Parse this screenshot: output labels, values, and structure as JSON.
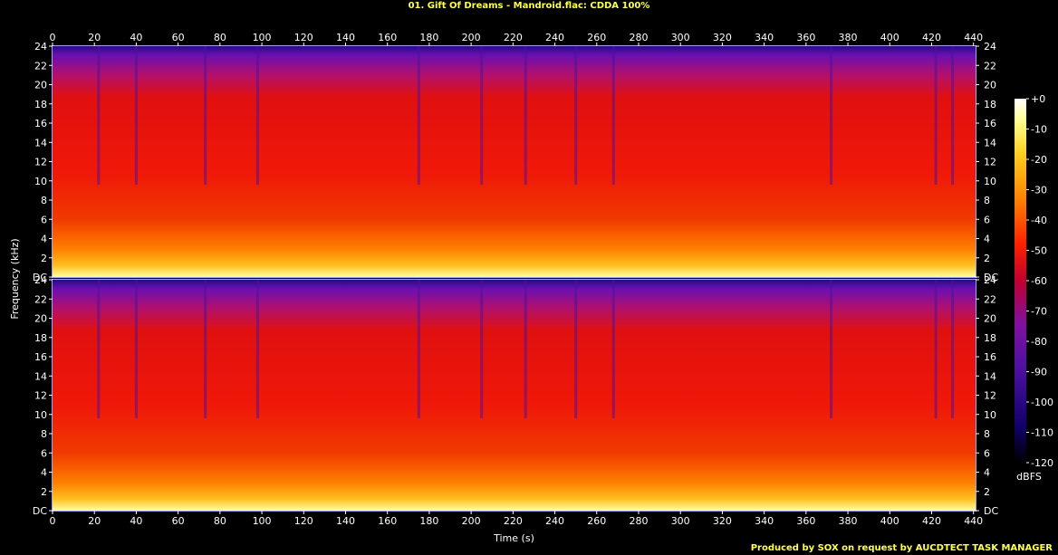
{
  "title": "01. Gift Of Dreams - Mandroid.flac: CDDA 100%",
  "credit": "Produced by SOX on request by AUCDTECT TASK MANAGER",
  "chart_data": {
    "type": "heatmap",
    "title": "01. Gift Of Dreams - Mandroid.flac: CDDA 100%",
    "xlabel": "Time (s)",
    "ylabel": "Frequency (kHz)",
    "xlim": [
      0,
      441
    ],
    "ylim": [
      0,
      24
    ],
    "x_ticks": [
      0,
      20,
      40,
      60,
      80,
      100,
      120,
      140,
      160,
      180,
      200,
      220,
      240,
      260,
      280,
      300,
      320,
      340,
      360,
      380,
      400,
      420,
      440
    ],
    "y_ticks": [
      0,
      2,
      4,
      6,
      8,
      10,
      12,
      14,
      16,
      18,
      20,
      22,
      24
    ],
    "y_tick_labels": [
      "DC",
      "2",
      "4",
      "6",
      "8",
      "10",
      "12",
      "14",
      "16",
      "18",
      "20",
      "22",
      "24"
    ],
    "channels": 2,
    "colorbar": {
      "label": "dBFS",
      "min": -120,
      "max": 0,
      "ticks": [
        0,
        -10,
        -20,
        -30,
        -40,
        -50,
        -60,
        -70,
        -80,
        -90,
        -100,
        -110,
        -120
      ],
      "tick_labels": [
        "+0",
        "-10",
        "-20",
        "-30",
        "-40",
        "-50",
        "-60",
        "-70",
        "-80",
        "-90",
        "-100",
        "-110",
        "-120"
      ],
      "colors": [
        "#000000",
        "#10006a",
        "#4a10a0",
        "#8010a0",
        "#c00020",
        "#ff2000",
        "#ff8000",
        "#ffd020",
        "#ffff80",
        "#ffffff"
      ]
    },
    "quiet_moments_s": [
      22,
      40,
      73,
      98,
      175,
      205,
      226,
      250,
      268,
      372,
      422,
      430
    ],
    "grid": false
  }
}
